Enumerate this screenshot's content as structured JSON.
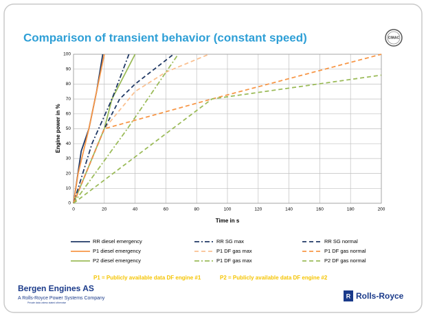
{
  "chart_data": {
    "type": "line",
    "title": "Comparison of transient behavior (constant speed)",
    "xlabel": "Time in s",
    "ylabel": "Engine power in %",
    "xlim": [
      0,
      200
    ],
    "xticks": [
      0,
      20,
      40,
      60,
      80,
      100,
      120,
      140,
      160,
      180,
      200
    ],
    "ylim": [
      0,
      100
    ],
    "yticks": [
      0,
      10,
      20,
      30,
      40,
      50,
      60,
      70,
      80,
      90,
      100
    ],
    "grid": true,
    "series": [
      {
        "name": "RR diesel emergency",
        "color": "#1f3864",
        "dash": "solid",
        "x": [
          0,
          5,
          10,
          15,
          19
        ],
        "values": [
          0,
          35,
          50,
          75,
          100
        ]
      },
      {
        "name": "P1 diesel emergency",
        "color": "#f79646",
        "dash": "solid",
        "x": [
          0,
          3,
          10,
          20
        ],
        "values": [
          0,
          20,
          50,
          100
        ]
      },
      {
        "name": "P2 diesel emergency",
        "color": "#9bbb59",
        "dash": "solid",
        "x": [
          0,
          20,
          25,
          40
        ],
        "values": [
          0,
          50,
          70,
          100
        ]
      },
      {
        "name": "RR SG max",
        "color": "#1f3864",
        "dash": "dashdot",
        "x": [
          0,
          12,
          25,
          36
        ],
        "values": [
          0,
          40,
          70,
          100
        ]
      },
      {
        "name": "P1 DF gas max",
        "color": "#fac090",
        "dash": "dashed",
        "x": [
          0,
          20,
          40,
          60,
          88
        ],
        "values": [
          0,
          50,
          75,
          88,
          100
        ]
      },
      {
        "name": "P1 DF gas max",
        "color": "#9bbb59",
        "dash": "dashdot",
        "x": [
          0,
          35,
          68
        ],
        "values": [
          0,
          50,
          100
        ]
      },
      {
        "name": "RR SG normal",
        "color": "#1f3864",
        "dash": "dashed",
        "x": [
          0,
          20,
          30,
          40,
          65
        ],
        "values": [
          0,
          50,
          70,
          80,
          100
        ]
      },
      {
        "name": "P1 DF gas normal",
        "color": "#f79646",
        "dash": "dashed",
        "x": [
          0,
          20,
          90,
          200
        ],
        "values": [
          0,
          50,
          70,
          100
        ]
      },
      {
        "name": "P2 DF gas normal",
        "color": "#9bbb59",
        "dash": "dashed",
        "x": [
          0,
          90,
          200
        ],
        "values": [
          0,
          70,
          86
        ]
      }
    ]
  },
  "slide": {
    "note1": "P1 = Publicly available data DF engine #1",
    "note2": "P2 = Publicly available data DF engine #2",
    "company": "Bergen Engines AS",
    "subtitle": "A Rolls-Royce Power Systems Company",
    "disclaimer": "Private data unless stated otherwise",
    "logo_badge": "CIMAC",
    "brand": "Rolls-Royce"
  }
}
